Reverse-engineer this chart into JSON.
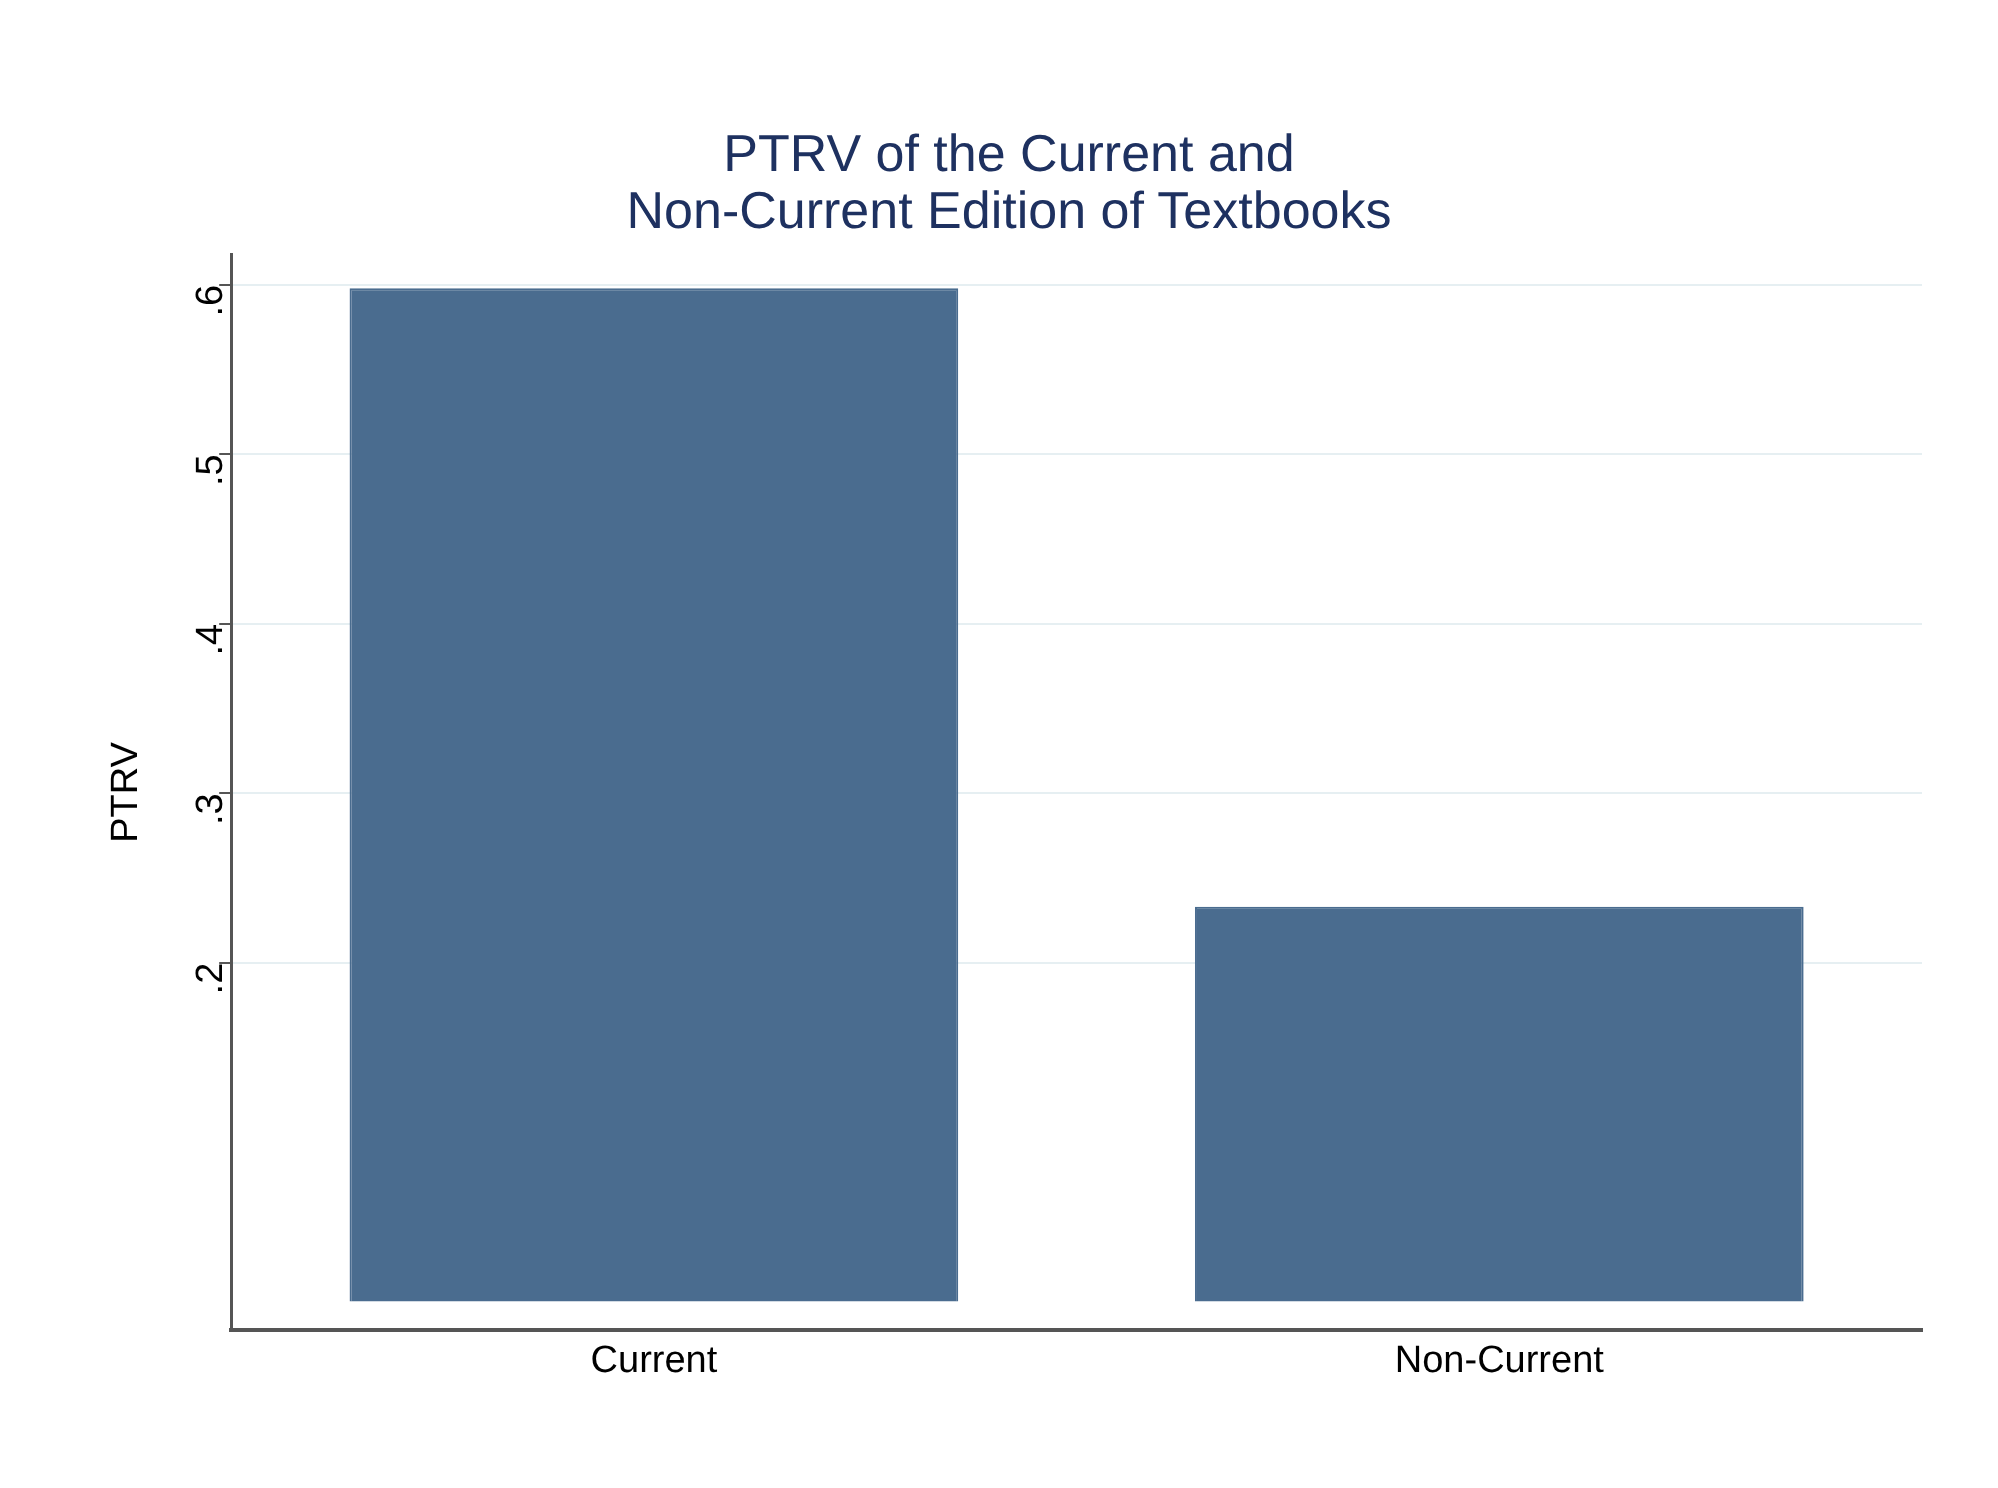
{
  "chart_data": {
    "type": "bar",
    "title": "PTRV of the Current and\nNon-Current Edition of Textbooks",
    "ylabel": "PTRV",
    "categories": [
      "Current",
      "Non-Current"
    ],
    "values": [
      0.598,
      0.233
    ],
    "color": "#4a6c8f",
    "ylim": [
      -0.017,
      0.618
    ],
    "yticks": [
      {
        "value": 0.2,
        "label": ".2"
      },
      {
        "value": 0.3,
        "label": ".3"
      },
      {
        "value": 0.4,
        "label": ".4"
      },
      {
        "value": 0.5,
        "label": ".5"
      },
      {
        "value": 0.6,
        "label": ".6"
      }
    ],
    "grid": "y",
    "legend": false
  }
}
